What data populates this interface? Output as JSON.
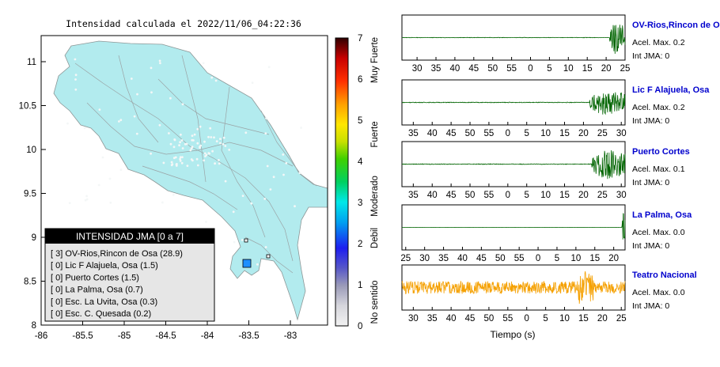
{
  "map": {
    "title": "Intensidad calculada el 2022/11/06_04:22:36",
    "xticks": [
      "-86",
      "-85.5",
      "-85",
      "-84.5",
      "-84",
      "-83.5",
      "-83"
    ],
    "yticks": [
      "11",
      "10.5",
      "10",
      "9.5",
      "9",
      "8.5",
      "8"
    ],
    "land_color": "#b2ebee",
    "station_color": "#1e90ff"
  },
  "legend": {
    "header": "INTENSIDAD JMA [0 a 7]",
    "rows": [
      "[ 3]  OV-Rios,Rincon de Osa (28.9)",
      "[ 0]  Lic F Alajuela, Osa (1.5)",
      "[ 0]  Puerto Cortes (1.5)",
      "[ 0]  La Palma, Osa (0.7)",
      "[ 0]  Esc. La Uvita, Osa (0.3)",
      "[ 0]  Esc. C. Quesada (0.2)"
    ]
  },
  "colorbar": {
    "ticks": [
      "7",
      "6",
      "5",
      "4",
      "3",
      "2",
      "1",
      "0"
    ],
    "labels": [
      "Muy Fuerte",
      "Fuerte",
      "Moderado",
      "Debil",
      "No sentido"
    ]
  },
  "chart_data": {
    "type": "line",
    "xlabel": "Tiempo (s)",
    "panels": [
      {
        "name": "OV-Rios,Rincon de Osa",
        "acel": "Acel. Max. 0.2",
        "int": "Int JMA: 0",
        "color": "#006400",
        "ticks": [
          "30",
          "35",
          "40",
          "45",
          "50",
          "55",
          "0",
          "5",
          "10",
          "15",
          "20",
          "25"
        ],
        "x0": 26,
        "x1": 85,
        "onset": 0.93,
        "noise": 0.02,
        "amp": 1.0
      },
      {
        "name": "Lic F Alajuela, Osa",
        "acel": "Acel. Max. 0.2",
        "int": "Int JMA: 0",
        "color": "#006400",
        "ticks": [
          "35",
          "40",
          "45",
          "50",
          "55",
          "0",
          "5",
          "10",
          "15",
          "20",
          "25",
          "30"
        ],
        "x0": 32,
        "x1": 91,
        "onset": 0.84,
        "noise": 0.03,
        "amp": 0.75
      },
      {
        "name": "Puerto Cortes",
        "acel": "Acel. Max. 0.1",
        "int": "Int JMA: 0",
        "color": "#006400",
        "ticks": [
          "35",
          "40",
          "45",
          "50",
          "55",
          "0",
          "5",
          "10",
          "15",
          "20",
          "25",
          "30"
        ],
        "x0": 32,
        "x1": 91,
        "onset": 0.85,
        "noise": 0.03,
        "amp": 0.9
      },
      {
        "name": "La Palma, Osa",
        "acel": "Acel. Max. 0.0",
        "int": "Int JMA: 0",
        "color": "#006400",
        "ticks": [
          "25",
          "30",
          "35",
          "40",
          "45",
          "50",
          "55",
          "0",
          "5",
          "10",
          "15",
          "20"
        ],
        "x0": 24,
        "x1": 83,
        "onset": 0.985,
        "noise": 0.01,
        "amp": 0.9
      },
      {
        "name": "Teatro Nacional",
        "acel": "Acel. Max. 0.0",
        "int": "Int JMA: 0",
        "color": "#f5a000",
        "ticks": [
          "30",
          "35",
          "40",
          "45",
          "50",
          "55",
          "0",
          "5",
          "10",
          "15",
          "20",
          "25"
        ],
        "x0": 27,
        "x1": 86,
        "onset": -1,
        "noise": 0.3,
        "amp": 0.3
      }
    ]
  }
}
